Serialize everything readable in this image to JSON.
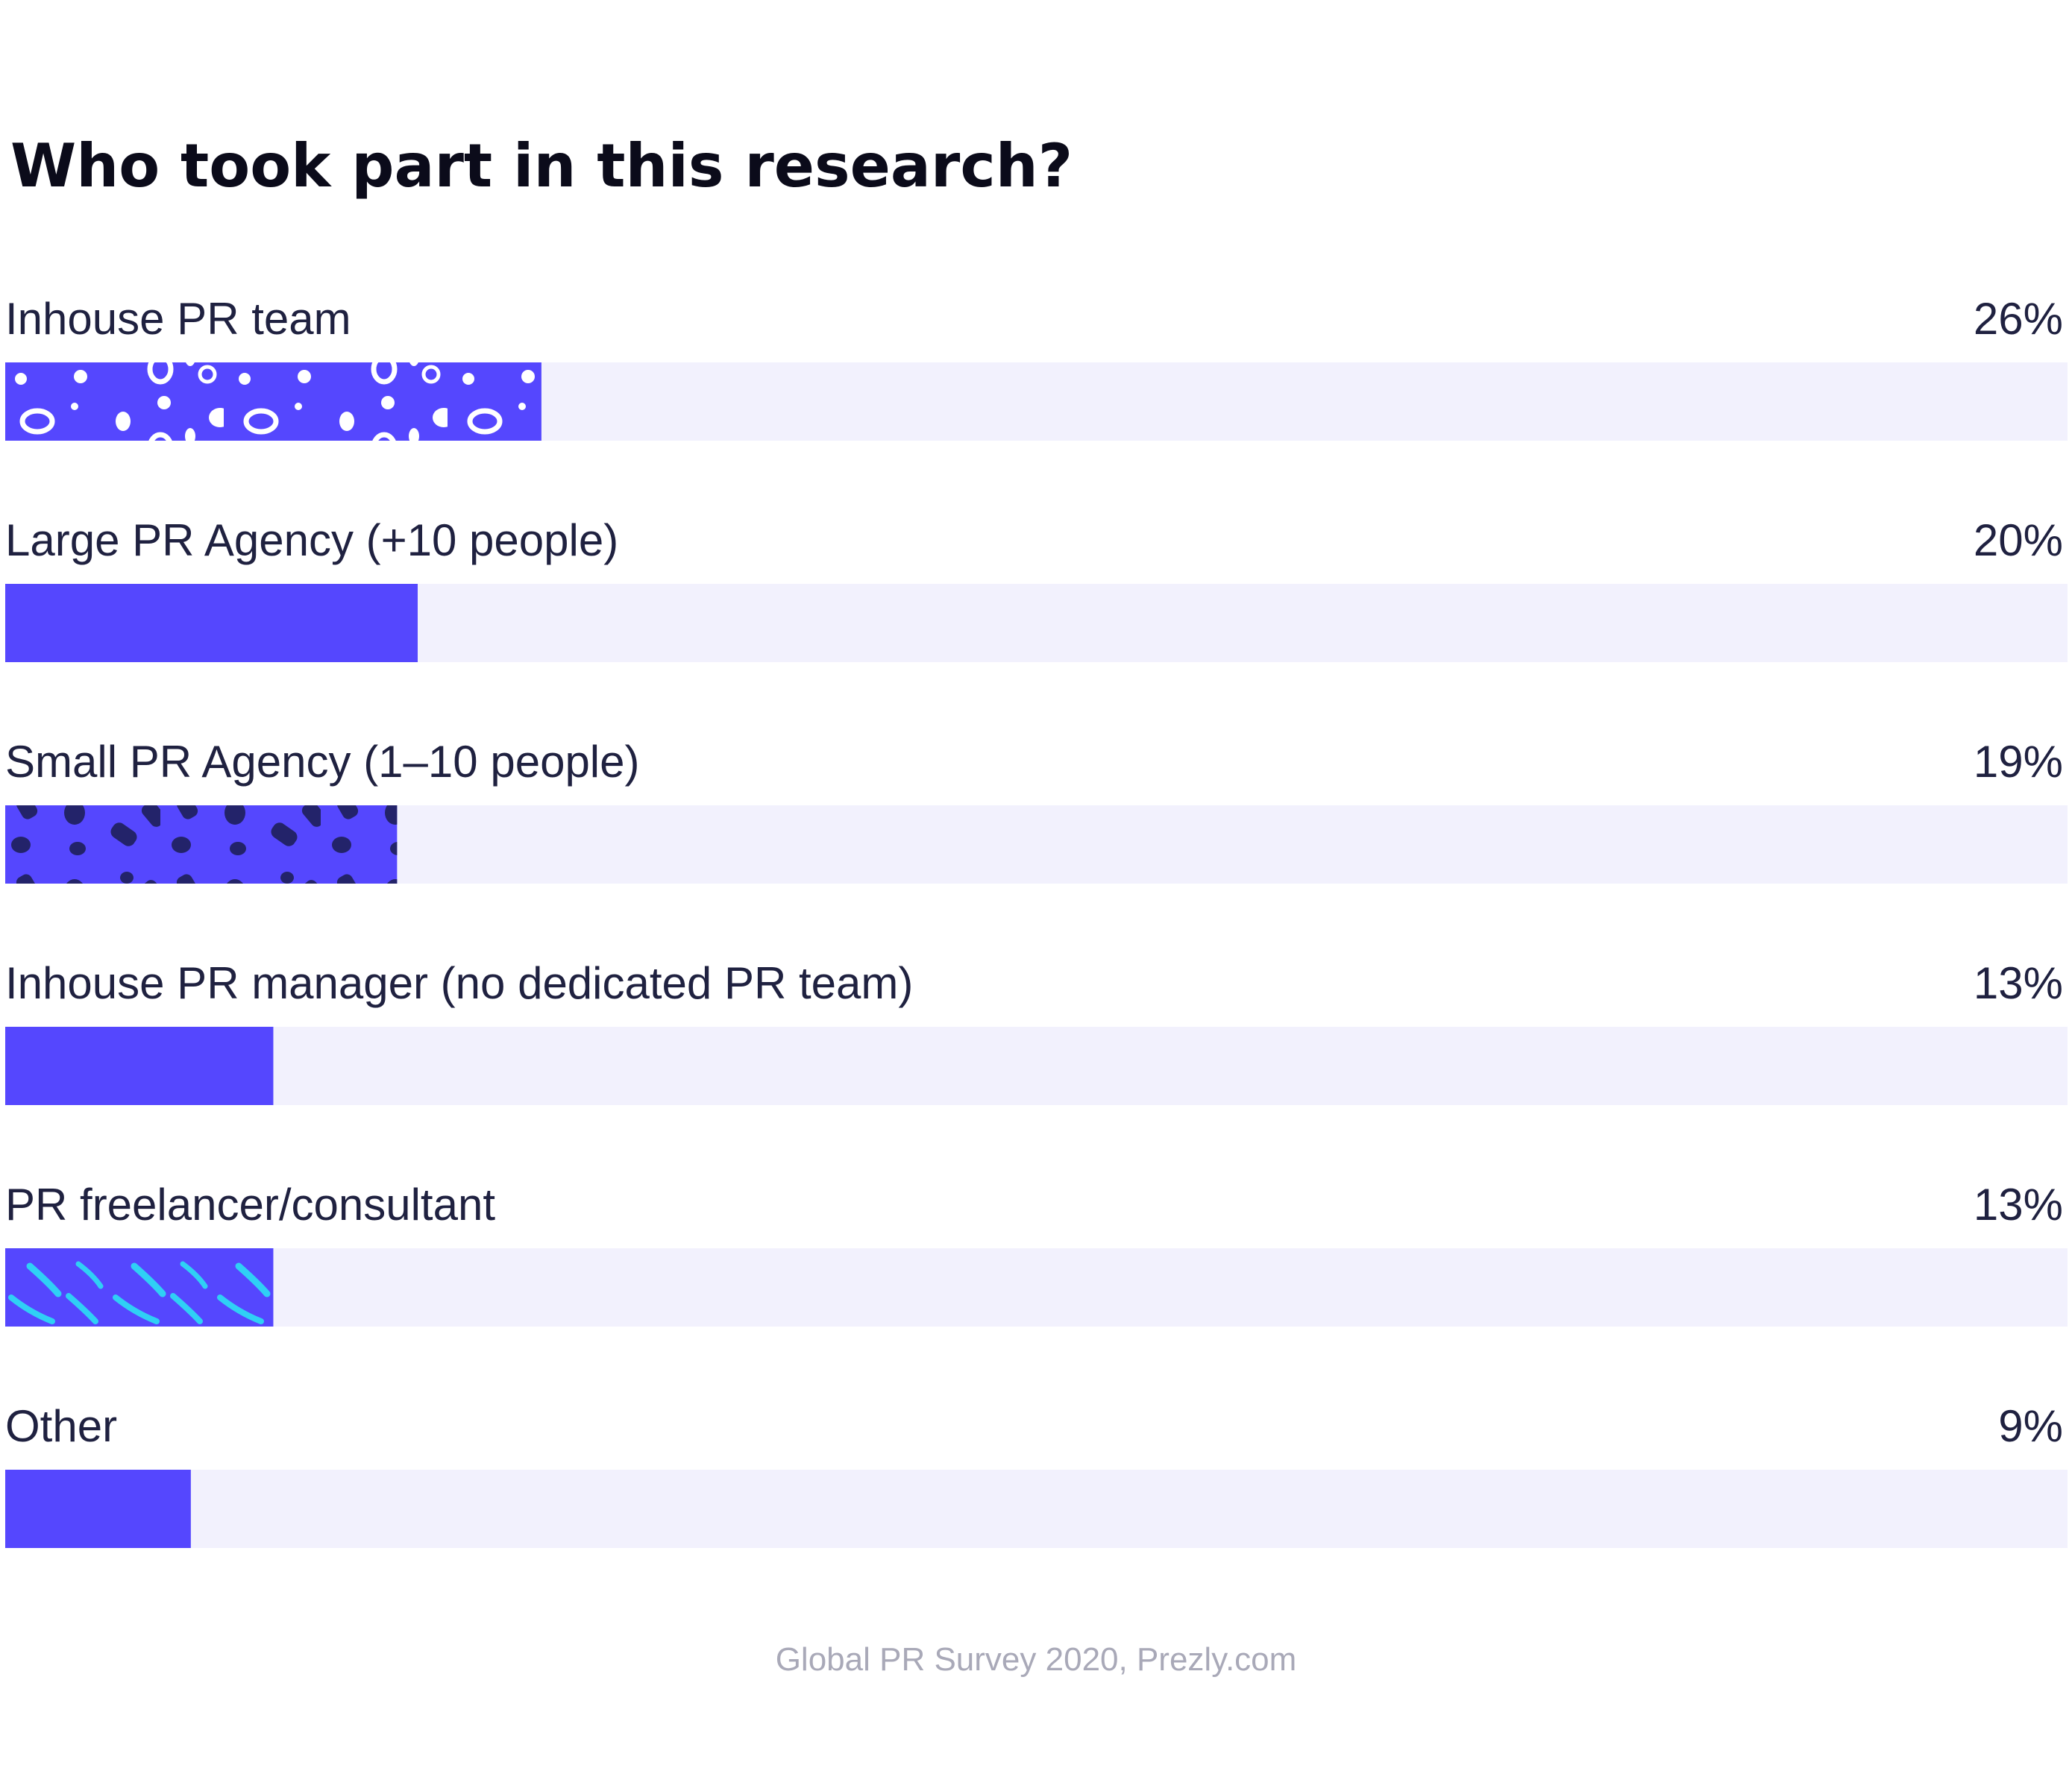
{
  "chart_data": {
    "type": "bar",
    "orientation": "horizontal",
    "title": "Who took part in this research?",
    "categories": [
      "Inhouse PR team",
      "Large PR Agency (+10 people)",
      "Small PR Agency (1–10 people)",
      "Inhouse PR manager (no dedicated PR team)",
      "PR freelancer/consultant",
      "Other"
    ],
    "values": [
      26,
      20,
      19,
      13,
      13,
      9
    ],
    "value_labels": [
      "26%",
      "20%",
      "19%",
      "13%",
      "13%",
      "9%"
    ],
    "bar_patterns": [
      "white-spots",
      "none",
      "dark-spots",
      "none",
      "cyan-strokes",
      "none"
    ],
    "unit": "%",
    "xlim": [
      0,
      100
    ],
    "scale_note": "bar lengths follow the fill proportions in the image (track = 100)",
    "grid": false,
    "legend": "none",
    "source": "Global PR Survey 2020, Prezly.com"
  },
  "colors": {
    "bar": "#5547fe",
    "track": "#f2f1fd",
    "pattern_light": "#ffffff",
    "pattern_dark": "#23236a",
    "pattern_cyan": "#2fd0f5",
    "text": "#1f2140",
    "title": "#0b0b1a",
    "source": "#a9a9b8"
  }
}
